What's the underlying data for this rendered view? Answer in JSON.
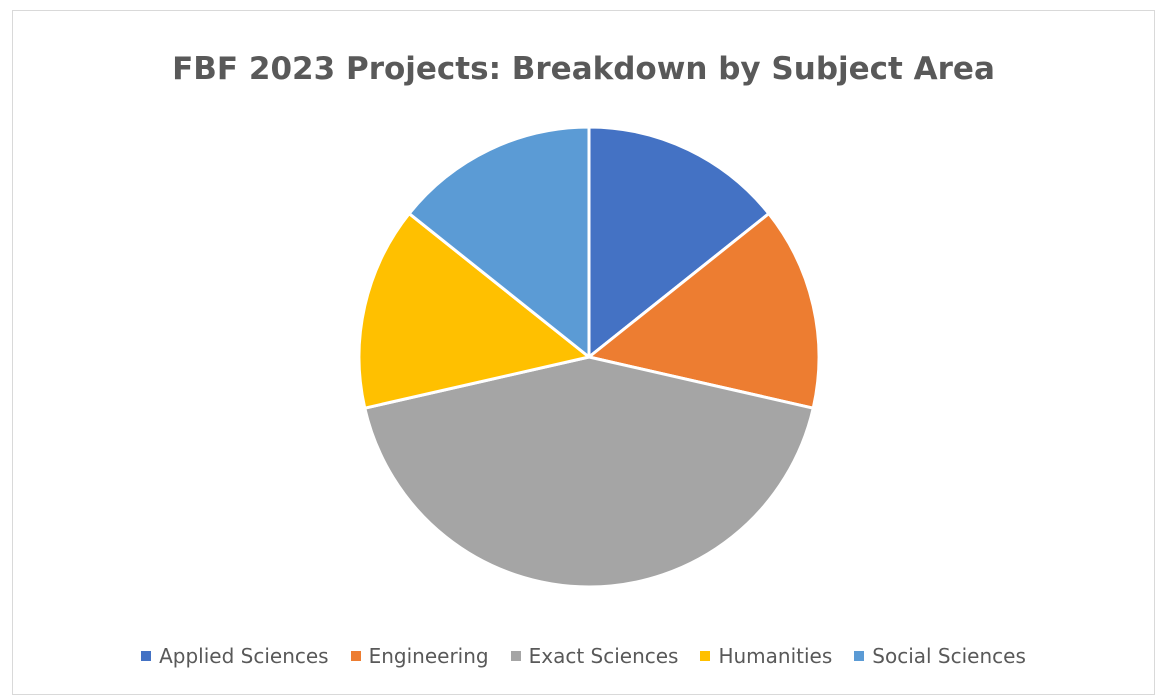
{
  "chart_data": {
    "type": "pie",
    "title": "FBF 2023 Projects: Breakdown by Subject Area",
    "categories": [
      "Applied Sciences",
      "Engineering",
      "Exact Sciences",
      "Humanities",
      "Social Sciences"
    ],
    "values": [
      14.3,
      14.3,
      42.9,
      14.3,
      14.3
    ],
    "colors": [
      "#4472C4",
      "#ED7D31",
      "#A5A5A5",
      "#FFC000",
      "#5B9BD5"
    ],
    "legend_position": "bottom",
    "start_angle": "12 o'clock, clockwise",
    "slice_border_color": "#ffffff"
  }
}
